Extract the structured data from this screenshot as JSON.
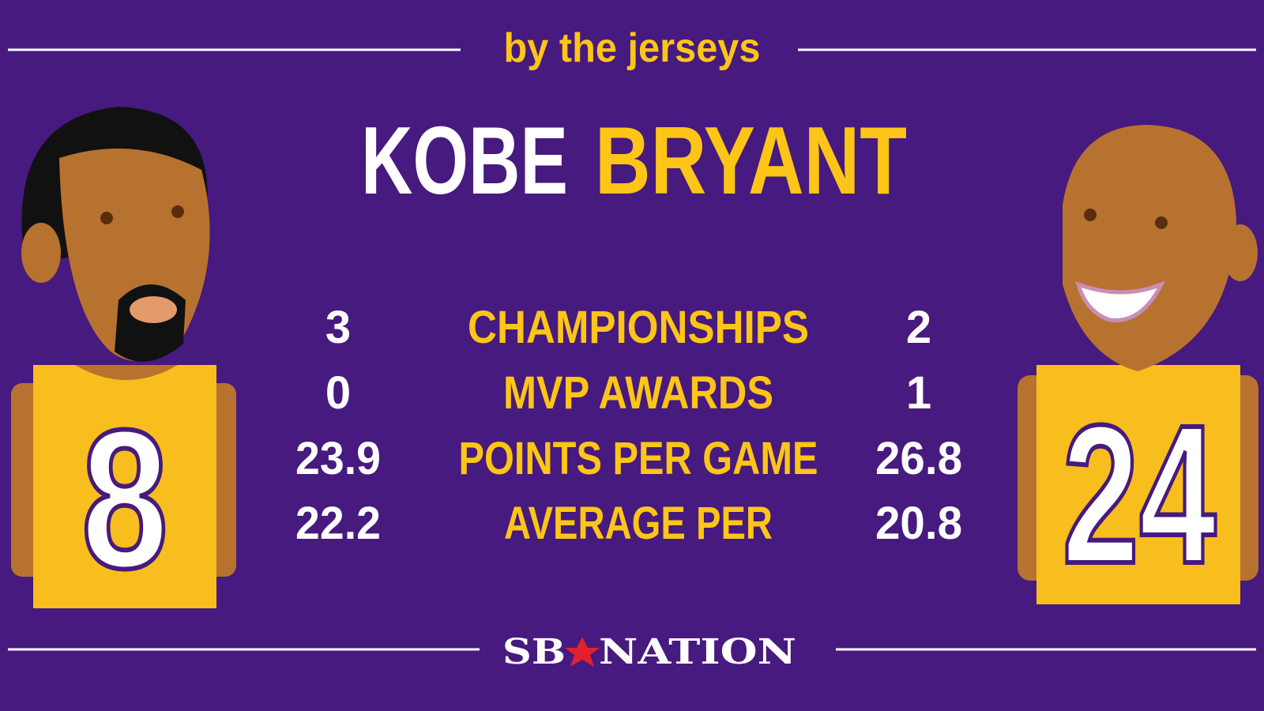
{
  "header": {
    "subtitle": "by the jerseys",
    "first_name": "KOBE",
    "last_name": "BRYANT"
  },
  "jerseys": {
    "left": 8,
    "right": 24
  },
  "stats": [
    {
      "left": 3,
      "label": "CHAMPIONSHIPS",
      "right": 2
    },
    {
      "left": 0,
      "label": "MVP AWARDS",
      "right": 1
    },
    {
      "left": 23.9,
      "label": "POINTS PER GAME",
      "right": 26.8
    },
    {
      "left": 22.2,
      "label": "AVERAGE PER",
      "right": 20.8
    }
  ],
  "footer": {
    "logo_left": "SB",
    "logo_right": "NATION"
  }
}
